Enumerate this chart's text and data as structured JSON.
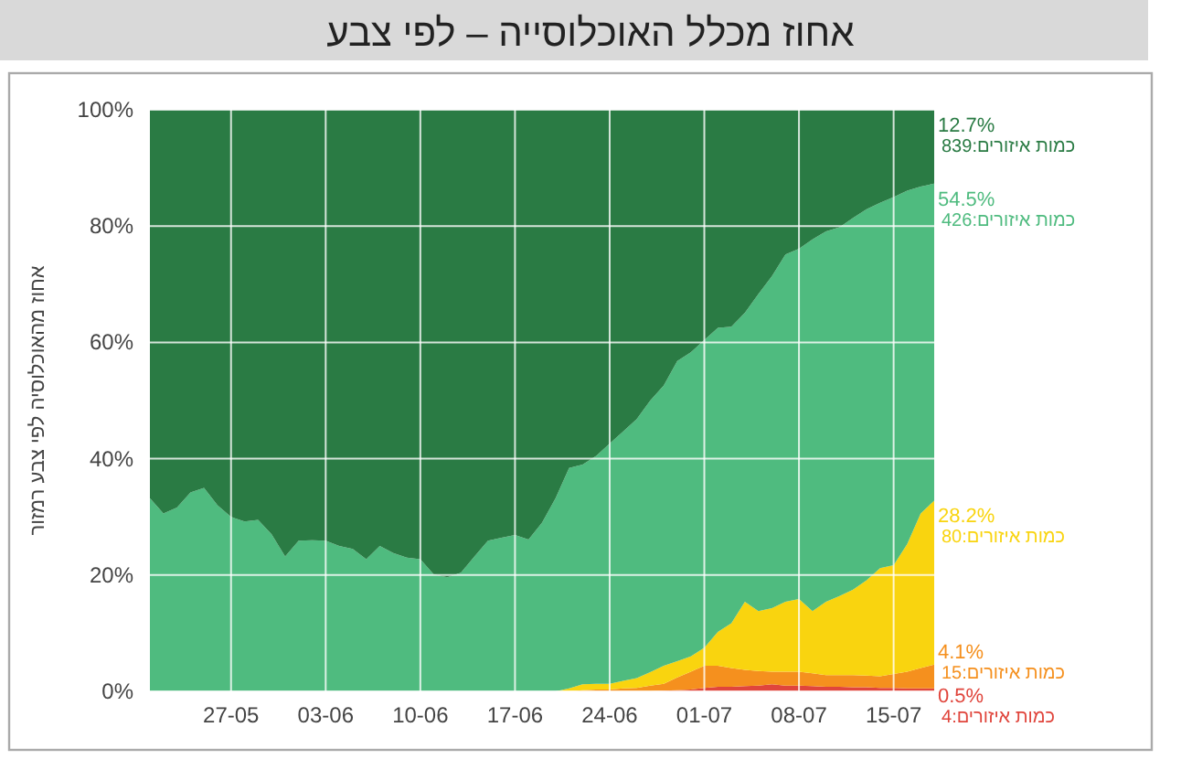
{
  "chart_data": {
    "type": "area",
    "title": "אחוז מכלל האוכלוסייה – לפי צבע",
    "ylabel": "אחוז מהאוכלוסיה לפי צבע רמזור",
    "stacked": true,
    "grid": true,
    "x": [
      "--05-21",
      "--05-22",
      "--05-23",
      "--05-24",
      "--05-25",
      "--05-26",
      "--05-27",
      "--05-28",
      "--05-29",
      "--05-30",
      "--05-31",
      "--06-01",
      "--06-02",
      "--06-03",
      "--06-04",
      "--06-05",
      "--06-06",
      "--06-07",
      "--06-08",
      "--06-09",
      "--06-10",
      "--06-11",
      "--06-12",
      "--06-13",
      "--06-14",
      "--06-15",
      "--06-16",
      "--06-17",
      "--06-18",
      "--06-19",
      "--06-20",
      "--06-21",
      "--06-22",
      "--06-23",
      "--06-24",
      "--06-25",
      "--06-26",
      "--06-27",
      "--06-28",
      "--06-29",
      "--06-30",
      "--07-01",
      "--07-02",
      "--07-03",
      "--07-04",
      "--07-05",
      "--07-06",
      "--07-07",
      "--07-08",
      "--07-09",
      "--07-10",
      "--07-11",
      "--07-12",
      "--07-13",
      "--07-14",
      "--07-15",
      "--07-16",
      "--07-17",
      "--07-18"
    ],
    "xlim": [
      "--05-21",
      "--07-18"
    ],
    "xticks": [
      {
        "value": "--05-27",
        "label": "27-05"
      },
      {
        "value": "--06-03",
        "label": "03-06"
      },
      {
        "value": "--06-10",
        "label": "10-06"
      },
      {
        "value": "--06-17",
        "label": "17-06"
      },
      {
        "value": "--06-24",
        "label": "24-06"
      },
      {
        "value": "--07-01",
        "label": "01-07"
      },
      {
        "value": "--07-08",
        "label": "08-07"
      },
      {
        "value": "--07-15",
        "label": "15-07"
      }
    ],
    "ylim": [
      0,
      100
    ],
    "yticks": [
      {
        "value": 0,
        "label": "0%"
      },
      {
        "value": 20,
        "label": "20%"
      },
      {
        "value": 40,
        "label": "40%"
      },
      {
        "value": 60,
        "label": "60%"
      },
      {
        "value": 80,
        "label": "80%"
      },
      {
        "value": 100,
        "label": "100%"
      }
    ],
    "series": [
      {
        "name": "כמות איזורים:4",
        "color": "#e0453c",
        "values": [
          0,
          0,
          0,
          0,
          0,
          0,
          0,
          0,
          0,
          0,
          0,
          0,
          0,
          0,
          0,
          0,
          0,
          0,
          0,
          0,
          0,
          0,
          0,
          0,
          0,
          0,
          0,
          0,
          0,
          0,
          0,
          0,
          0,
          0,
          0,
          0,
          0,
          0,
          0.1,
          0.2,
          0.3,
          0.6,
          0.8,
          0.8,
          0.9,
          1.0,
          1.2,
          1.0,
          1.0,
          0.9,
          0.8,
          0.8,
          0.7,
          0.7,
          0.6,
          0.6,
          0.5,
          0.5,
          0.5
        ],
        "value_labels": [
          null,
          null,
          null,
          null,
          null,
          null,
          null,
          null,
          null,
          null,
          null,
          null,
          null,
          null,
          null,
          null,
          null,
          null,
          null,
          null,
          null,
          null,
          null,
          null,
          null,
          null,
          null,
          null,
          null,
          null,
          null,
          null,
          null,
          null,
          null,
          null,
          null,
          null,
          null,
          null,
          null,
          null,
          null,
          null,
          null,
          null,
          null,
          null,
          null,
          null,
          null,
          null,
          null,
          null,
          null,
          null,
          null,
          null,
          "0.5%"
        ]
      },
      {
        "name": "כמות איזורים:15",
        "color": "#f5901e",
        "values": [
          0,
          0,
          0,
          0,
          0,
          0,
          0,
          0,
          0,
          0,
          0,
          0,
          0,
          0,
          0,
          0,
          0,
          0,
          0,
          0,
          0,
          0,
          0,
          0,
          0,
          0,
          0,
          0,
          0,
          0,
          0,
          0,
          0.2,
          0.3,
          0.3,
          0.5,
          0.6,
          1.0,
          1.2,
          2.2,
          3.1,
          3.8,
          3.6,
          3.2,
          2.8,
          2.5,
          2.2,
          2.4,
          2.4,
          2.2,
          2.0,
          2.0,
          2.1,
          2.0,
          2.0,
          2.4,
          2.9,
          3.5,
          4.1
        ],
        "value_labels": [
          null,
          null,
          null,
          null,
          null,
          null,
          null,
          null,
          null,
          null,
          null,
          null,
          null,
          null,
          null,
          null,
          null,
          null,
          null,
          null,
          null,
          null,
          null,
          null,
          null,
          null,
          null,
          null,
          null,
          null,
          null,
          null,
          null,
          null,
          null,
          null,
          null,
          null,
          null,
          null,
          null,
          null,
          null,
          null,
          null,
          null,
          null,
          null,
          null,
          null,
          null,
          null,
          null,
          null,
          null,
          null,
          null,
          null,
          "4.1%"
        ]
      },
      {
        "name": "כמות איזורים:80",
        "color": "#f9d40f",
        "values": [
          0,
          0,
          0,
          0,
          0,
          0,
          0,
          0,
          0,
          0,
          0,
          0,
          0,
          0,
          0,
          0,
          0,
          0,
          0,
          0,
          0,
          0,
          0,
          0,
          0,
          0,
          0,
          0,
          0,
          0,
          0,
          0.5,
          1.0,
          1.0,
          1.0,
          1.3,
          1.7,
          2.3,
          3.1,
          2.8,
          2.6,
          3.1,
          5.8,
          7.7,
          11.7,
          10.3,
          10.9,
          12.0,
          12.5,
          10.7,
          12.6,
          13.6,
          14.7,
          16.4,
          18.6,
          18.7,
          21.9,
          26.6,
          28.2
        ],
        "value_labels": [
          null,
          null,
          null,
          null,
          null,
          null,
          null,
          null,
          null,
          null,
          null,
          null,
          null,
          null,
          null,
          null,
          null,
          null,
          null,
          null,
          null,
          null,
          null,
          null,
          null,
          null,
          null,
          null,
          null,
          null,
          null,
          null,
          null,
          null,
          null,
          null,
          null,
          null,
          null,
          null,
          null,
          null,
          null,
          null,
          null,
          null,
          null,
          null,
          null,
          null,
          null,
          null,
          null,
          null,
          null,
          null,
          null,
          null,
          "28.2%"
        ]
      },
      {
        "name": "כמות איזורים:426",
        "color": "#4fbb7f",
        "values": [
          33.2,
          30.6,
          31.6,
          34.2,
          35,
          32,
          30,
          29.2,
          29.5,
          27,
          23.2,
          25.9,
          26,
          25.9,
          25,
          24.5,
          22.7,
          25,
          23.8,
          23,
          22.7,
          20.1,
          19.6,
          20.4,
          23.2,
          25.9,
          26.4,
          26.9,
          26.1,
          29,
          33.2,
          37.9,
          37.8,
          39.2,
          41.3,
          42.9,
          44.5,
          46.7,
          48.2,
          51.6,
          52.3,
          52.9,
          52.3,
          51.0,
          49.7,
          54.5,
          57.1,
          59.7,
          60.2,
          63.9,
          63.7,
          63.4,
          63.9,
          63.8,
          62.8,
          63.3,
          60.8,
          56.2,
          54.5
        ],
        "value_labels": [
          null,
          null,
          null,
          null,
          null,
          null,
          null,
          null,
          null,
          null,
          null,
          null,
          null,
          null,
          null,
          null,
          null,
          null,
          null,
          null,
          null,
          null,
          null,
          null,
          null,
          null,
          null,
          null,
          null,
          null,
          null,
          null,
          null,
          null,
          null,
          null,
          null,
          null,
          null,
          null,
          null,
          null,
          null,
          null,
          null,
          null,
          null,
          null,
          null,
          null,
          null,
          null,
          null,
          null,
          null,
          null,
          null,
          null,
          "54.5%"
        ]
      },
      {
        "name": "כמות איזורים:839",
        "color": "#2a7b44",
        "values": [
          66.8,
          69.4,
          68.4,
          65.8,
          65,
          68,
          70,
          70.8,
          70.5,
          73,
          76.8,
          74.1,
          74,
          74.1,
          75,
          75.5,
          77.3,
          75,
          76.2,
          77,
          77.3,
          79.9,
          80.4,
          79.6,
          76.8,
          74.1,
          73.6,
          73.1,
          73.9,
          71,
          66.8,
          61.6,
          61,
          59.5,
          57.4,
          55.3,
          53.2,
          50,
          47.4,
          43.2,
          41.7,
          39.6,
          37.5,
          37.3,
          34.9,
          31.7,
          28.6,
          24.9,
          23.9,
          22.3,
          20.9,
          20.2,
          18.6,
          17.1,
          16,
          15,
          13.9,
          13.2,
          12.7
        ],
        "value_labels": [
          null,
          null,
          null,
          null,
          null,
          null,
          null,
          null,
          null,
          null,
          null,
          null,
          null,
          null,
          null,
          null,
          null,
          null,
          null,
          null,
          null,
          null,
          null,
          null,
          null,
          null,
          null,
          null,
          null,
          null,
          null,
          null,
          null,
          null,
          null,
          null,
          null,
          null,
          null,
          null,
          null,
          null,
          null,
          null,
          null,
          null,
          null,
          null,
          null,
          null,
          null,
          null,
          null,
          null,
          null,
          null,
          null,
          null,
          "12.7%"
        ]
      }
    ]
  }
}
